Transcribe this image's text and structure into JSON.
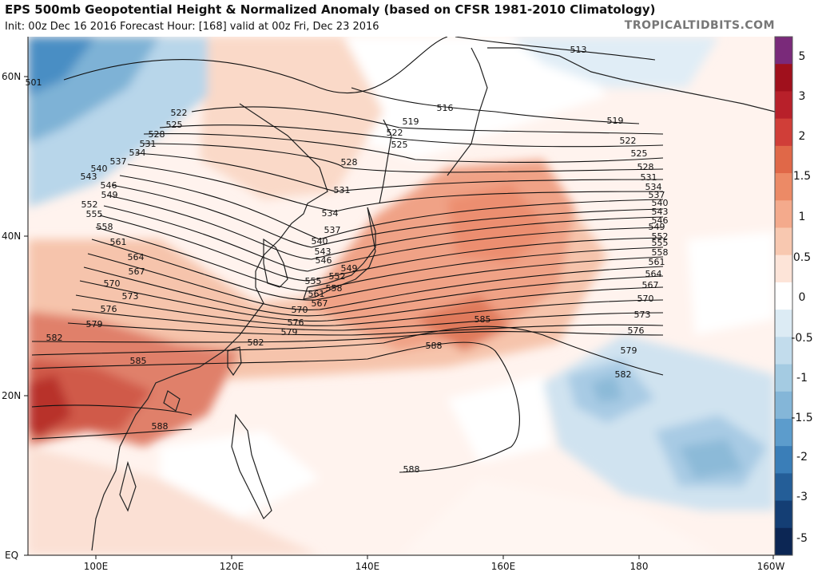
{
  "header": {
    "title": "EPS 500mb Geopotential Height & Normalized Anomaly (based on CFSR 1981-2010 Climatology)",
    "subtitle": "Init: 00z Dec 16 2016   Forecast Hour: [168]   valid at 00z Fri, Dec 23 2016",
    "brand": "TROPICALTIDBITS.COM"
  },
  "axes": {
    "lat_ticks": [
      "60N",
      "40N",
      "20N",
      "EQ"
    ],
    "lon_ticks": [
      "100E",
      "120E",
      "140E",
      "160E",
      "180",
      "160W"
    ]
  },
  "colorbar": {
    "labels": [
      "5",
      "3",
      "2",
      "1.5",
      "1",
      "0.5",
      "0",
      "-0.5",
      "-1",
      "-1.5",
      "-2",
      "-3",
      "-5"
    ],
    "colors": [
      "#7a2a7a",
      "#a0101c",
      "#b8202a",
      "#d03e38",
      "#e06848",
      "#ec8a66",
      "#f4aa8c",
      "#f8c8b0",
      "#fde4d8",
      "#ffffff",
      "#dcebf4",
      "#c2dcec",
      "#a4cbe2",
      "#84b6d8",
      "#5c9ccc",
      "#3a7eb8",
      "#245e98",
      "#143e74",
      "#0c2654"
    ]
  },
  "contours": {
    "labels": [
      "501",
      "513",
      "516",
      "519",
      "522",
      "525",
      "528",
      "531",
      "534",
      "537",
      "540",
      "543",
      "546",
      "549",
      "552",
      "555",
      "558",
      "561",
      "564",
      "567",
      "570",
      "573",
      "576",
      "579",
      "582",
      "585",
      "588"
    ]
  }
}
